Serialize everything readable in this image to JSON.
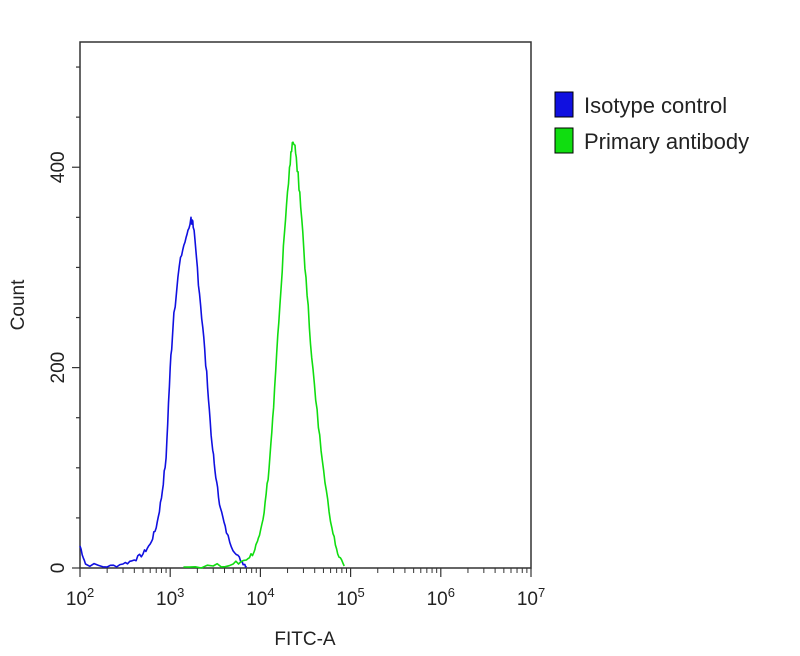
{
  "chart_data": {
    "type": "line",
    "title": "",
    "xlabel": "FITC-A",
    "ylabel": "Count",
    "xscale": "log",
    "xlim": [
      100,
      10000000
    ],
    "ylim": [
      0,
      525
    ],
    "x_ticks": [
      {
        "base": "10",
        "exp": "2"
      },
      {
        "base": "10",
        "exp": "3"
      },
      {
        "base": "10",
        "exp": "4"
      },
      {
        "base": "10",
        "exp": "5"
      },
      {
        "base": "10",
        "exp": "6"
      },
      {
        "base": "10",
        "exp": "7"
      }
    ],
    "y_ticks": [
      "0",
      "200",
      "400"
    ],
    "y_tick_values": [
      0,
      200,
      400
    ],
    "grid": false,
    "legend_position": "right",
    "series": [
      {
        "name": "Isotype control",
        "color": "#1010e0",
        "points": [
          [
            100,
            22
          ],
          [
            115,
            4
          ],
          [
            200,
            1
          ],
          [
            300,
            4
          ],
          [
            400,
            8
          ],
          [
            500,
            14
          ],
          [
            600,
            24
          ],
          [
            700,
            40
          ],
          [
            800,
            70
          ],
          [
            900,
            110
          ],
          [
            1000,
            200
          ],
          [
            1100,
            255
          ],
          [
            1300,
            310
          ],
          [
            1500,
            330
          ],
          [
            1700,
            350
          ],
          [
            1800,
            340
          ],
          [
            2000,
            300
          ],
          [
            2300,
            240
          ],
          [
            2600,
            180
          ],
          [
            2900,
            125
          ],
          [
            3200,
            90
          ],
          [
            3600,
            60
          ],
          [
            4200,
            35
          ],
          [
            5200,
            15
          ],
          [
            6300,
            6
          ],
          [
            7000,
            2
          ]
        ]
      },
      {
        "name": "Primary antibody",
        "color": "#10dd10",
        "points": [
          [
            1400,
            1
          ],
          [
            3000,
            2
          ],
          [
            5000,
            4
          ],
          [
            7000,
            8
          ],
          [
            8500,
            16
          ],
          [
            9500,
            30
          ],
          [
            11000,
            55
          ],
          [
            12500,
            100
          ],
          [
            14000,
            160
          ],
          [
            16000,
            245
          ],
          [
            18500,
            335
          ],
          [
            21000,
            400
          ],
          [
            23000,
            425
          ],
          [
            25000,
            410
          ],
          [
            28000,
            360
          ],
          [
            32000,
            290
          ],
          [
            37000,
            210
          ],
          [
            44000,
            140
          ],
          [
            52000,
            85
          ],
          [
            62000,
            40
          ],
          [
            72000,
            14
          ],
          [
            85000,
            2
          ]
        ]
      }
    ]
  }
}
